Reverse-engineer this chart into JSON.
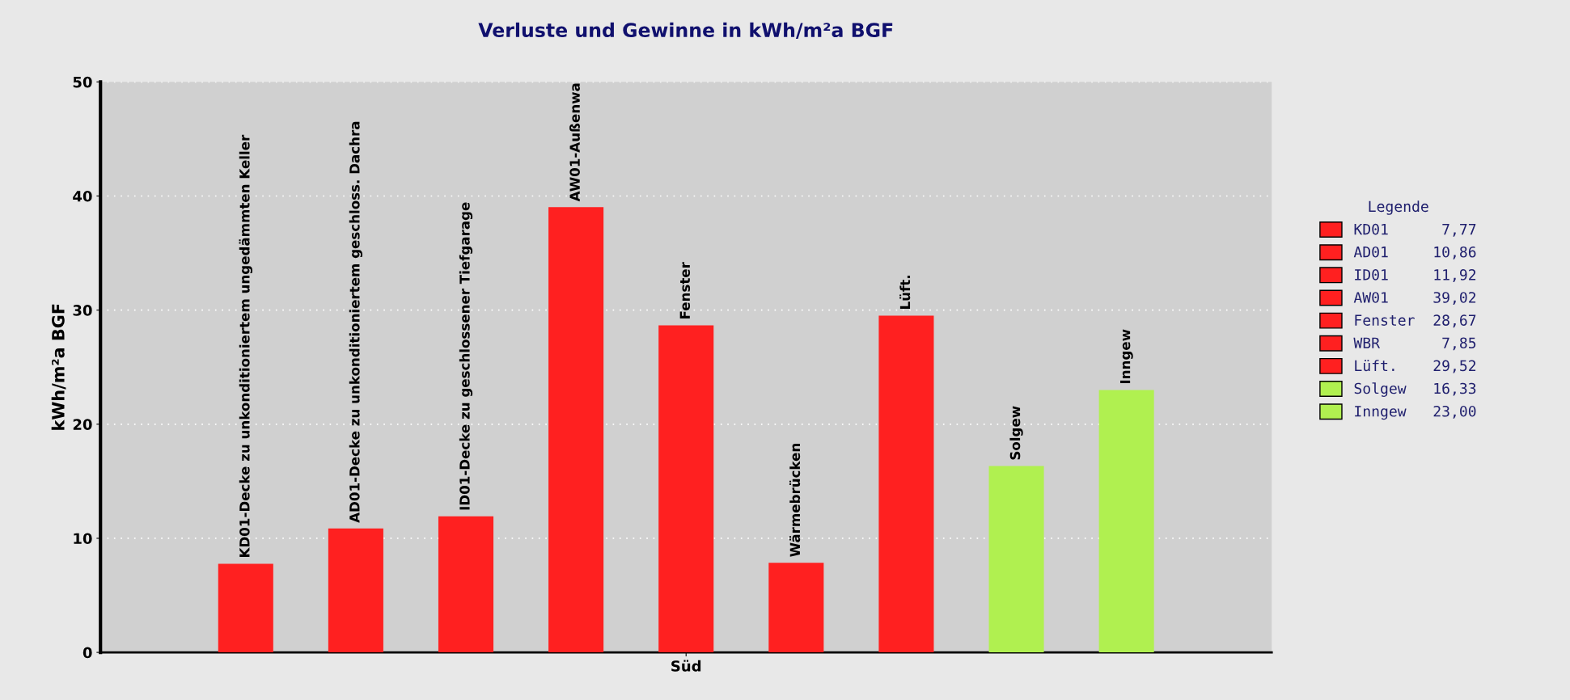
{
  "chart_data": {
    "type": "bar",
    "title": "Verluste und Gewinne in kWh/m²a BGF",
    "ylabel": "kWh/m²a BGF",
    "legend_title": "Legende",
    "categories": [
      "Süd"
    ],
    "series": [
      {
        "name": "KD01",
        "color": "#ff2020",
        "values": [
          7.77
        ],
        "value_labels": [
          "7,77"
        ]
      },
      {
        "name": "AD01",
        "color": "#ff2020",
        "values": [
          10.86
        ],
        "value_labels": [
          "10,86"
        ]
      },
      {
        "name": "ID01",
        "color": "#ff2020",
        "values": [
          11.92
        ],
        "value_labels": [
          "11,92"
        ]
      },
      {
        "name": "AW01",
        "color": "#ff2020",
        "values": [
          39.02
        ],
        "value_labels": [
          "39,02"
        ]
      },
      {
        "name": "Fenster",
        "color": "#ff2020",
        "values": [
          28.67
        ],
        "value_labels": [
          "28,67"
        ]
      },
      {
        "name": "WBR",
        "color": "#ff2020",
        "values": [
          7.85
        ],
        "value_labels": [
          "7,85"
        ]
      },
      {
        "name": "Lüft.",
        "color": "#ff2020",
        "values": [
          29.52
        ],
        "value_labels": [
          "29,52"
        ]
      },
      {
        "name": "Solgew",
        "color": "#b0f050",
        "values": [
          16.33
        ],
        "value_labels": [
          "16,33"
        ]
      },
      {
        "name": "Inngew",
        "color": "#b0f050",
        "values": [
          23.0
        ],
        "value_labels": [
          "23,00"
        ]
      }
    ],
    "annotations": [
      "KD01-Decke zu unkonditioniertem ungedämmten Keller",
      "AD01-Decke zu unkonditioniertem geschloss. Dachra",
      "ID01-Decke zu geschlossener Tiefgarage",
      "AW01-Außenwa",
      "Fenster",
      "Wärmebrücken",
      "Lüft.",
      "Solgew",
      "Inngew"
    ],
    "ylim": [
      0,
      50
    ],
    "yticks": [
      0,
      10,
      20,
      30,
      40,
      50
    ],
    "grid": "y",
    "legend": "right"
  }
}
